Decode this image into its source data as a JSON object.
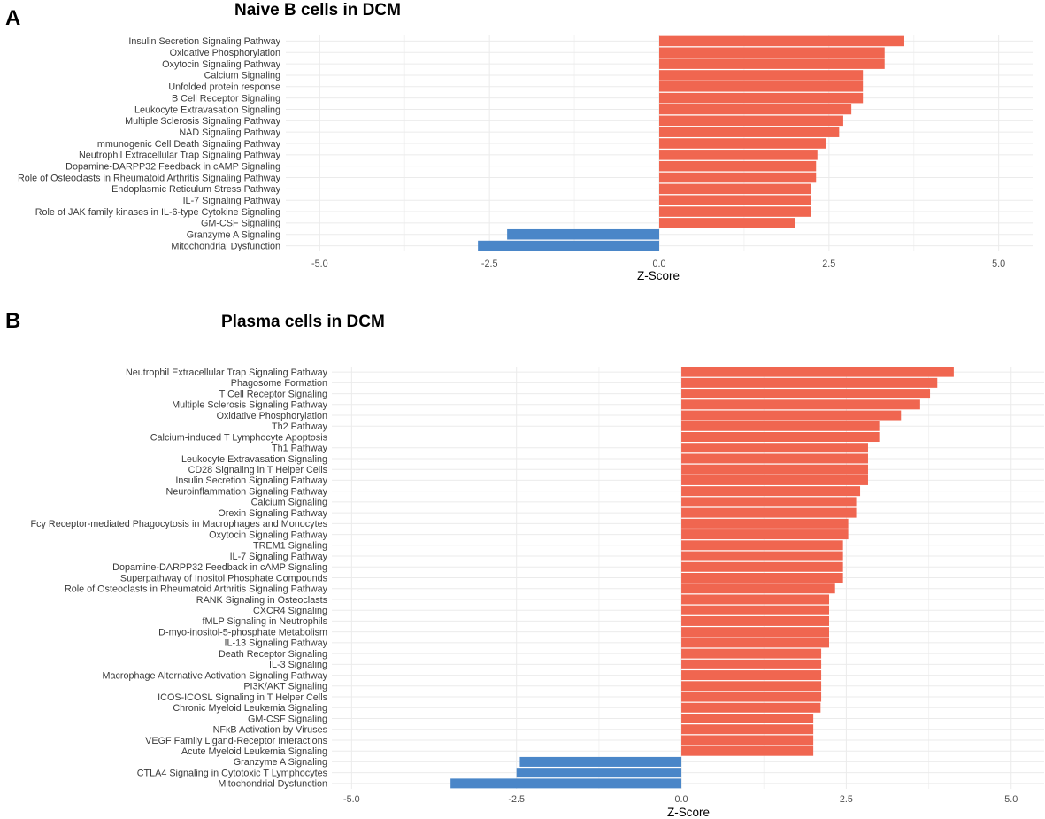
{
  "chart_data": [
    {
      "panel_label": "A",
      "title": "Naive B cells in DCM",
      "type": "bar",
      "orientation": "horizontal",
      "xlabel": "Z-Score",
      "ylabel": "",
      "xlim": [
        -5.5,
        5.5
      ],
      "xticks": [
        -5.0,
        -2.5,
        0.0,
        2.5,
        5.0
      ],
      "xtick_labels": [
        "-5.0",
        "-2.5",
        "0.0",
        "2.5",
        "5.0"
      ],
      "grid": true,
      "positive_color": "#f06650",
      "negative_color": "#4a86c8",
      "categories": [
        "Insulin Secretion Signaling Pathway",
        "Oxidative Phosphorylation",
        "Oxytocin Signaling Pathway",
        "Calcium Signaling",
        "Unfolded protein response",
        "B Cell Receptor Signaling",
        "Leukocyte Extravasation Signaling",
        "Multiple Sclerosis Signaling Pathway",
        "NAD Signaling Pathway",
        "Immunogenic Cell Death Signaling Pathway",
        "Neutrophil Extracellular Trap Signaling Pathway",
        "Dopamine-DARPP32 Feedback in cAMP Signaling",
        "Role of Osteoclasts in Rheumatoid Arthritis Signaling Pathway",
        "Endoplasmic Reticulum Stress Pathway",
        "IL-7 Signaling Pathway",
        "Role of JAK family kinases in IL-6-type Cytokine Signaling",
        "GM-CSF Signaling",
        "Granzyme A Signaling",
        "Mitochondrial Dysfunction"
      ],
      "values": [
        3.61,
        3.32,
        3.32,
        3.0,
        3.0,
        3.0,
        2.83,
        2.71,
        2.65,
        2.45,
        2.33,
        2.31,
        2.31,
        2.24,
        2.24,
        2.24,
        2.0,
        -2.24,
        -2.67
      ]
    },
    {
      "panel_label": "B",
      "title": "Plasma cells in DCM",
      "type": "bar",
      "orientation": "horizontal",
      "xlabel": "Z-Score",
      "ylabel": "",
      "xlim": [
        -5.3,
        5.5
      ],
      "xticks": [
        -5.0,
        -2.5,
        0.0,
        2.5,
        5.0
      ],
      "xtick_labels": [
        "-5.0",
        "-2.5",
        "0.0",
        "2.5",
        "5.0"
      ],
      "grid": true,
      "positive_color": "#f06650",
      "negative_color": "#4a86c8",
      "categories": [
        "Neutrophil Extracellular Trap Signaling Pathway",
        "Phagosome Formation",
        "T Cell Receptor Signaling",
        "Multiple Sclerosis Signaling Pathway",
        "Oxidative Phosphorylation",
        "Th2 Pathway",
        "Calcium-induced T Lymphocyte Apoptosis",
        "Th1 Pathway",
        "Leukocyte Extravasation Signaling",
        "CD28 Signaling in T Helper Cells",
        "Insulin Secretion Signaling Pathway",
        "Neuroinflammation Signaling Pathway",
        "Calcium Signaling",
        "Orexin Signaling Pathway",
        "Fcγ Receptor-mediated Phagocytosis in Macrophages and Monocytes",
        "Oxytocin Signaling Pathway",
        "TREM1 Signaling",
        "IL-7 Signaling Pathway",
        "Dopamine-DARPP32 Feedback in cAMP Signaling",
        "Superpathway of Inositol Phosphate Compounds",
        "Role of Osteoclasts in Rheumatoid Arthritis Signaling Pathway",
        "RANK Signaling in Osteoclasts",
        "CXCR4 Signaling",
        "fMLP Signaling in Neutrophils",
        "D-myo-inositol-5-phosphate Metabolism",
        "IL-13 Signaling Pathway",
        "Death Receptor Signaling",
        "IL-3 Signaling",
        "Macrophage Alternative Activation Signaling Pathway",
        "PI3K/AKT Signaling",
        "ICOS-ICOSL Signaling in T Helper Cells",
        "Chronic Myeloid Leukemia Signaling",
        "GM-CSF Signaling",
        "NFκB Activation by Viruses",
        "VEGF Family Ligand-Receptor Interactions",
        "Acute Myeloid Leukemia Signaling",
        "Granzyme A Signaling",
        "CTLA4 Signaling in Cytotoxic T Lymphocytes",
        "Mitochondrial Dysfunction"
      ],
      "values": [
        4.13,
        3.88,
        3.77,
        3.62,
        3.33,
        3.0,
        3.0,
        2.83,
        2.83,
        2.83,
        2.83,
        2.71,
        2.65,
        2.65,
        2.53,
        2.53,
        2.45,
        2.45,
        2.45,
        2.45,
        2.33,
        2.24,
        2.24,
        2.24,
        2.24,
        2.24,
        2.12,
        2.12,
        2.12,
        2.12,
        2.12,
        2.11,
        2.0,
        2.0,
        2.0,
        2.0,
        -2.45,
        -2.5,
        -3.5
      ]
    }
  ]
}
